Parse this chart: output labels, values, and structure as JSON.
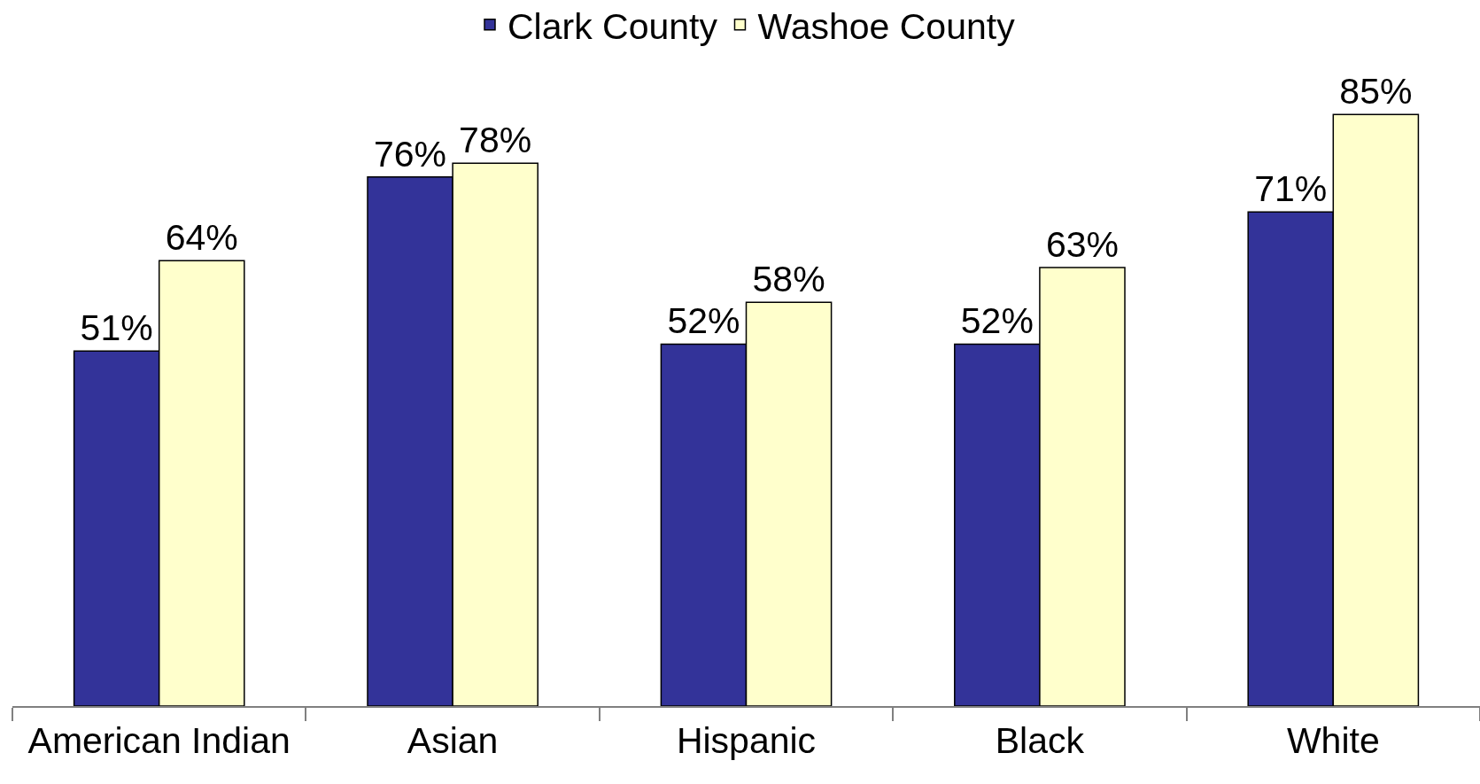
{
  "chart_data": {
    "type": "bar",
    "categories": [
      "American Indian",
      "Asian",
      "Hispanic",
      "Black",
      "White"
    ],
    "series": [
      {
        "name": "Clark County",
        "color": "#333399",
        "values": [
          51,
          76,
          52,
          52,
          71
        ],
        "value_labels": [
          "51%",
          "76%",
          "52%",
          "52%",
          "71%"
        ]
      },
      {
        "name": "Washoe County",
        "color": "#ffffcc",
        "values": [
          64,
          78,
          58,
          63,
          85
        ],
        "value_labels": [
          "64%",
          "78%",
          "58%",
          "63%",
          "85%"
        ]
      }
    ],
    "legend": "top",
    "tick_labels": "x"
  }
}
